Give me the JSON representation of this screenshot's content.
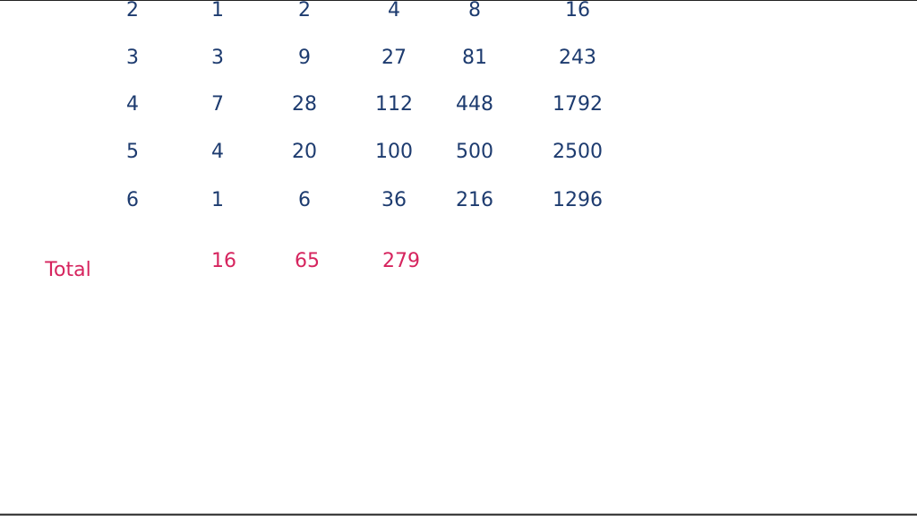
{
  "table": {
    "rows": [
      [
        2,
        1,
        2,
        4,
        8,
        16
      ],
      [
        3,
        3,
        9,
        27,
        81,
        243
      ],
      [
        4,
        7,
        28,
        112,
        448,
        1792
      ],
      [
        5,
        4,
        20,
        100,
        500,
        2500
      ],
      [
        6,
        1,
        6,
        36,
        216,
        1296
      ]
    ]
  },
  "total": {
    "label": "Total",
    "values": [
      16,
      65,
      279
    ]
  }
}
